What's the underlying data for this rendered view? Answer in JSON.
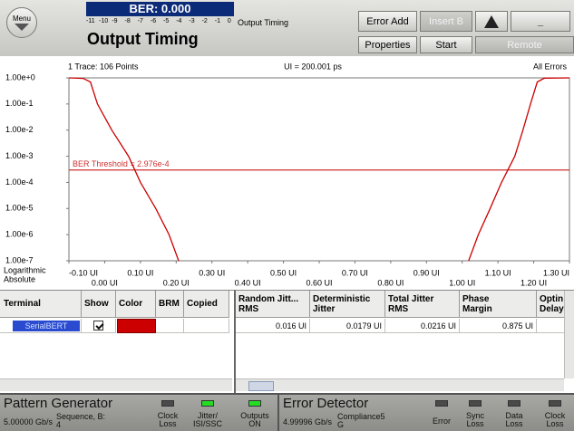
{
  "header": {
    "menu": "Menu",
    "ber": "BER: 0.000",
    "ber_scale": [
      -11,
      -10,
      -9,
      -8,
      -7,
      -6,
      -5,
      -4,
      -3,
      -2,
      -1,
      0
    ],
    "ber_caption": "Output Timing",
    "title": "Output Timing",
    "buttons": [
      {
        "label": "Error Add",
        "enabled": true
      },
      {
        "label": "Insert B",
        "enabled": false
      },
      {
        "label": "Properties",
        "enabled": true
      },
      {
        "label": "Start",
        "enabled": true
      },
      {
        "label": "Remote",
        "enabled": false
      }
    ],
    "minimize": "_"
  },
  "chart_data": {
    "type": "line",
    "header_left": "1 Trace: 106 Points",
    "header_center": "UI = 200.001 ps",
    "header_right": "All Errors",
    "scale_labels": [
      "Logarithmic",
      "Absolute"
    ],
    "log_y": true,
    "grid": false,
    "xlim": [
      -0.1,
      1.3
    ],
    "xticks": [
      {
        "value": -0.1,
        "label": "-0.10 UI"
      },
      {
        "value": 0,
        "label": "0.00 UI"
      },
      {
        "value": 0.1,
        "label": "0.10 UI"
      },
      {
        "value": 0.2,
        "label": "0.20 UI"
      },
      {
        "value": 0.3,
        "label": "0.30 UI"
      },
      {
        "value": 0.4,
        "label": "0.40 UI"
      },
      {
        "value": 0.5,
        "label": "0.50 UI"
      },
      {
        "value": 0.6,
        "label": "0.60 UI"
      },
      {
        "value": 0.7,
        "label": "0.70 UI"
      },
      {
        "value": 0.8,
        "label": "0.80 UI"
      },
      {
        "value": 0.9,
        "label": "0.90 UI"
      },
      {
        "value": 1.0,
        "label": "1.00 UI"
      },
      {
        "value": 1.1,
        "label": "1.10 UI"
      },
      {
        "value": 1.2,
        "label": "1.20 UI"
      },
      {
        "value": 1.3,
        "label": "1.30 UI"
      }
    ],
    "ylim": [
      1e-07,
      1
    ],
    "yticks": [
      {
        "value": 1,
        "label": "1.00e+0"
      },
      {
        "value": 0.1,
        "label": "1.00e-1"
      },
      {
        "value": 0.01,
        "label": "1.00e-2"
      },
      {
        "value": 0.001,
        "label": "1.00e-3"
      },
      {
        "value": 0.0001,
        "label": "1.00e-4"
      },
      {
        "value": 1e-05,
        "label": "1.00e-5"
      },
      {
        "value": 1e-06,
        "label": "1.00e-6"
      },
      {
        "value": 1e-07,
        "label": "1.00e-7"
      }
    ],
    "threshold": {
      "value": 0.0002976,
      "label": "BER Threshold = 2.976e-4",
      "color": "#d03030"
    },
    "series": [
      {
        "color": "#cc0000",
        "x": [
          -0.1,
          -0.06,
          -0.04,
          -0.02,
          0.02,
          0.067,
          0.1,
          0.143,
          0.18,
          0.207
        ],
        "values": [
          1,
          0.95,
          0.7,
          0.1,
          0.01,
          0.001,
          0.0001,
          1e-05,
          1e-06,
          1e-07
        ]
      },
      {
        "color": "#cc0000",
        "x": [
          1.018,
          1.045,
          1.078,
          1.11,
          1.147,
          1.17,
          1.191,
          1.21,
          1.23,
          1.3
        ],
        "values": [
          1e-07,
          1e-06,
          1e-05,
          0.0001,
          0.001,
          0.01,
          0.1,
          0.7,
          0.98,
          1
        ]
      }
    ]
  },
  "left_table": {
    "columns": [
      "Terminal",
      "Show",
      "Color",
      "BRM",
      "Copied"
    ],
    "rows": [
      {
        "terminal": "SerialBERT",
        "show": true,
        "color": "#cc0000"
      }
    ]
  },
  "right_table": {
    "columns": [
      [
        "Random Jitt...",
        "RMS"
      ],
      [
        "Deterministic",
        "Jitter"
      ],
      [
        "Total Jitter",
        "RMS"
      ],
      [
        "Phase",
        "Margin"
      ],
      [
        "Optin",
        "Delay"
      ]
    ],
    "rows": [
      [
        "0.016 UI",
        "0.0179 UI",
        "0.0216 UI",
        "0.875 UI"
      ]
    ]
  },
  "status": {
    "pattern_generator": {
      "title": "Pattern Generator",
      "rate": "5.00000 Gb/s",
      "pattern": [
        "Sequence, B:",
        "4"
      ],
      "indicators": [
        {
          "label": [
            "Clock",
            "Loss"
          ],
          "on": false
        },
        {
          "label": [
            "Jitter/",
            "ISI/SSC"
          ],
          "on": true
        },
        {
          "label": [
            "Outputs",
            "ON"
          ],
          "on": true
        }
      ]
    },
    "error_detector": {
      "title": "Error Detector",
      "rate": "4.99996 Gb/s",
      "pattern": [
        "Compliance5",
        "G"
      ],
      "indicators": [
        {
          "label": [
            "Error"
          ],
          "on": false
        },
        {
          "label": [
            "Sync",
            "Loss"
          ],
          "on": false
        },
        {
          "label": [
            "Data",
            "Loss"
          ],
          "on": false
        },
        {
          "label": [
            "Clock",
            "Loss"
          ],
          "on": false
        }
      ]
    }
  }
}
